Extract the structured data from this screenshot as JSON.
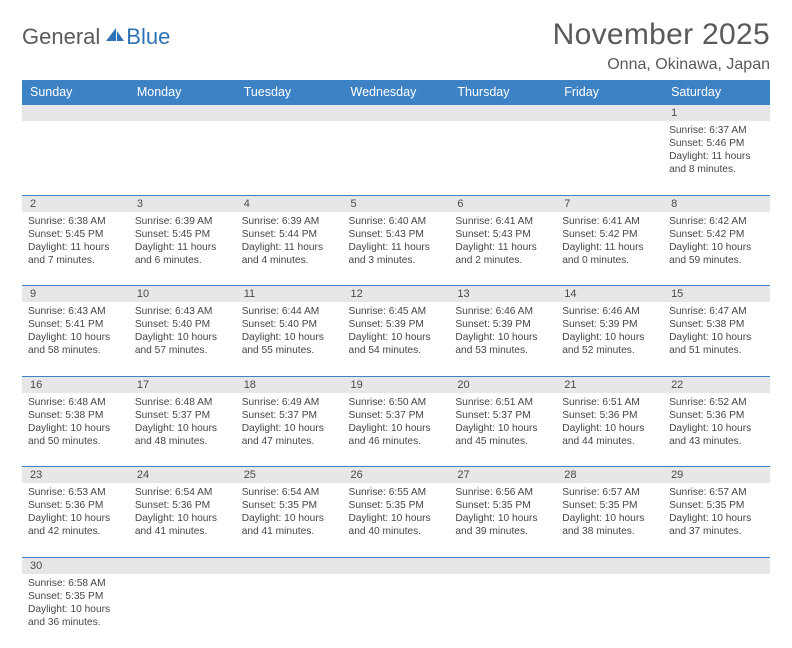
{
  "logo": {
    "text1": "General",
    "text2": "Blue"
  },
  "title": "November 2025",
  "location": "Onna, Okinawa, Japan",
  "colors": {
    "header_bg": "#3d82c4",
    "header_text": "#ffffff",
    "daynum_bg": "#e7e7e7",
    "body_text": "#464646",
    "brand_blue": "#2f73b5",
    "brand_gray": "#5a5a5a",
    "rule": "#3d82c4"
  },
  "weekdays": [
    "Sunday",
    "Monday",
    "Tuesday",
    "Wednesday",
    "Thursday",
    "Friday",
    "Saturday"
  ],
  "weeks": [
    [
      null,
      null,
      null,
      null,
      null,
      null,
      {
        "n": "1",
        "sunrise": "6:37 AM",
        "sunset": "5:46 PM",
        "dl": "11 hours and 8 minutes."
      }
    ],
    [
      {
        "n": "2",
        "sunrise": "6:38 AM",
        "sunset": "5:45 PM",
        "dl": "11 hours and 7 minutes."
      },
      {
        "n": "3",
        "sunrise": "6:39 AM",
        "sunset": "5:45 PM",
        "dl": "11 hours and 6 minutes."
      },
      {
        "n": "4",
        "sunrise": "6:39 AM",
        "sunset": "5:44 PM",
        "dl": "11 hours and 4 minutes."
      },
      {
        "n": "5",
        "sunrise": "6:40 AM",
        "sunset": "5:43 PM",
        "dl": "11 hours and 3 minutes."
      },
      {
        "n": "6",
        "sunrise": "6:41 AM",
        "sunset": "5:43 PM",
        "dl": "11 hours and 2 minutes."
      },
      {
        "n": "7",
        "sunrise": "6:41 AM",
        "sunset": "5:42 PM",
        "dl": "11 hours and 0 minutes."
      },
      {
        "n": "8",
        "sunrise": "6:42 AM",
        "sunset": "5:42 PM",
        "dl": "10 hours and 59 minutes."
      }
    ],
    [
      {
        "n": "9",
        "sunrise": "6:43 AM",
        "sunset": "5:41 PM",
        "dl": "10 hours and 58 minutes."
      },
      {
        "n": "10",
        "sunrise": "6:43 AM",
        "sunset": "5:40 PM",
        "dl": "10 hours and 57 minutes."
      },
      {
        "n": "11",
        "sunrise": "6:44 AM",
        "sunset": "5:40 PM",
        "dl": "10 hours and 55 minutes."
      },
      {
        "n": "12",
        "sunrise": "6:45 AM",
        "sunset": "5:39 PM",
        "dl": "10 hours and 54 minutes."
      },
      {
        "n": "13",
        "sunrise": "6:46 AM",
        "sunset": "5:39 PM",
        "dl": "10 hours and 53 minutes."
      },
      {
        "n": "14",
        "sunrise": "6:46 AM",
        "sunset": "5:39 PM",
        "dl": "10 hours and 52 minutes."
      },
      {
        "n": "15",
        "sunrise": "6:47 AM",
        "sunset": "5:38 PM",
        "dl": "10 hours and 51 minutes."
      }
    ],
    [
      {
        "n": "16",
        "sunrise": "6:48 AM",
        "sunset": "5:38 PM",
        "dl": "10 hours and 50 minutes."
      },
      {
        "n": "17",
        "sunrise": "6:48 AM",
        "sunset": "5:37 PM",
        "dl": "10 hours and 48 minutes."
      },
      {
        "n": "18",
        "sunrise": "6:49 AM",
        "sunset": "5:37 PM",
        "dl": "10 hours and 47 minutes."
      },
      {
        "n": "19",
        "sunrise": "6:50 AM",
        "sunset": "5:37 PM",
        "dl": "10 hours and 46 minutes."
      },
      {
        "n": "20",
        "sunrise": "6:51 AM",
        "sunset": "5:37 PM",
        "dl": "10 hours and 45 minutes."
      },
      {
        "n": "21",
        "sunrise": "6:51 AM",
        "sunset": "5:36 PM",
        "dl": "10 hours and 44 minutes."
      },
      {
        "n": "22",
        "sunrise": "6:52 AM",
        "sunset": "5:36 PM",
        "dl": "10 hours and 43 minutes."
      }
    ],
    [
      {
        "n": "23",
        "sunrise": "6:53 AM",
        "sunset": "5:36 PM",
        "dl": "10 hours and 42 minutes."
      },
      {
        "n": "24",
        "sunrise": "6:54 AM",
        "sunset": "5:36 PM",
        "dl": "10 hours and 41 minutes."
      },
      {
        "n": "25",
        "sunrise": "6:54 AM",
        "sunset": "5:35 PM",
        "dl": "10 hours and 41 minutes."
      },
      {
        "n": "26",
        "sunrise": "6:55 AM",
        "sunset": "5:35 PM",
        "dl": "10 hours and 40 minutes."
      },
      {
        "n": "27",
        "sunrise": "6:56 AM",
        "sunset": "5:35 PM",
        "dl": "10 hours and 39 minutes."
      },
      {
        "n": "28",
        "sunrise": "6:57 AM",
        "sunset": "5:35 PM",
        "dl": "10 hours and 38 minutes."
      },
      {
        "n": "29",
        "sunrise": "6:57 AM",
        "sunset": "5:35 PM",
        "dl": "10 hours and 37 minutes."
      }
    ],
    [
      {
        "n": "30",
        "sunrise": "6:58 AM",
        "sunset": "5:35 PM",
        "dl": "10 hours and 36 minutes."
      },
      null,
      null,
      null,
      null,
      null,
      null
    ]
  ],
  "labels": {
    "sunrise": "Sunrise:",
    "sunset": "Sunset:",
    "daylight": "Daylight:"
  }
}
